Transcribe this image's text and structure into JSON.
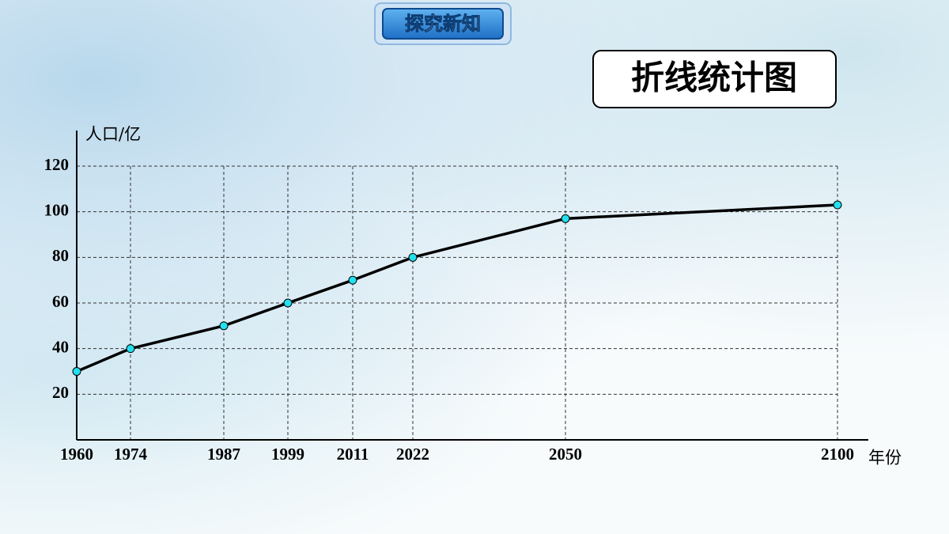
{
  "header": {
    "badge": "探究新知"
  },
  "chart_data": {
    "type": "line",
    "title": "折线统计图",
    "y_label": "人口/亿",
    "x_label": "年份",
    "categories": [
      "1960",
      "1974",
      "1987",
      "1999",
      "2011",
      "2022",
      "2050",
      "2100"
    ],
    "series": [
      {
        "color": "#000000",
        "marker_color": "#22e0ee",
        "values": [
          30,
          40,
          50,
          60,
          70,
          80,
          97,
          103
        ]
      }
    ],
    "ylim": [
      0,
      120
    ],
    "yticks": [
      20,
      40,
      60,
      80,
      100,
      120
    ],
    "grid": true
  }
}
